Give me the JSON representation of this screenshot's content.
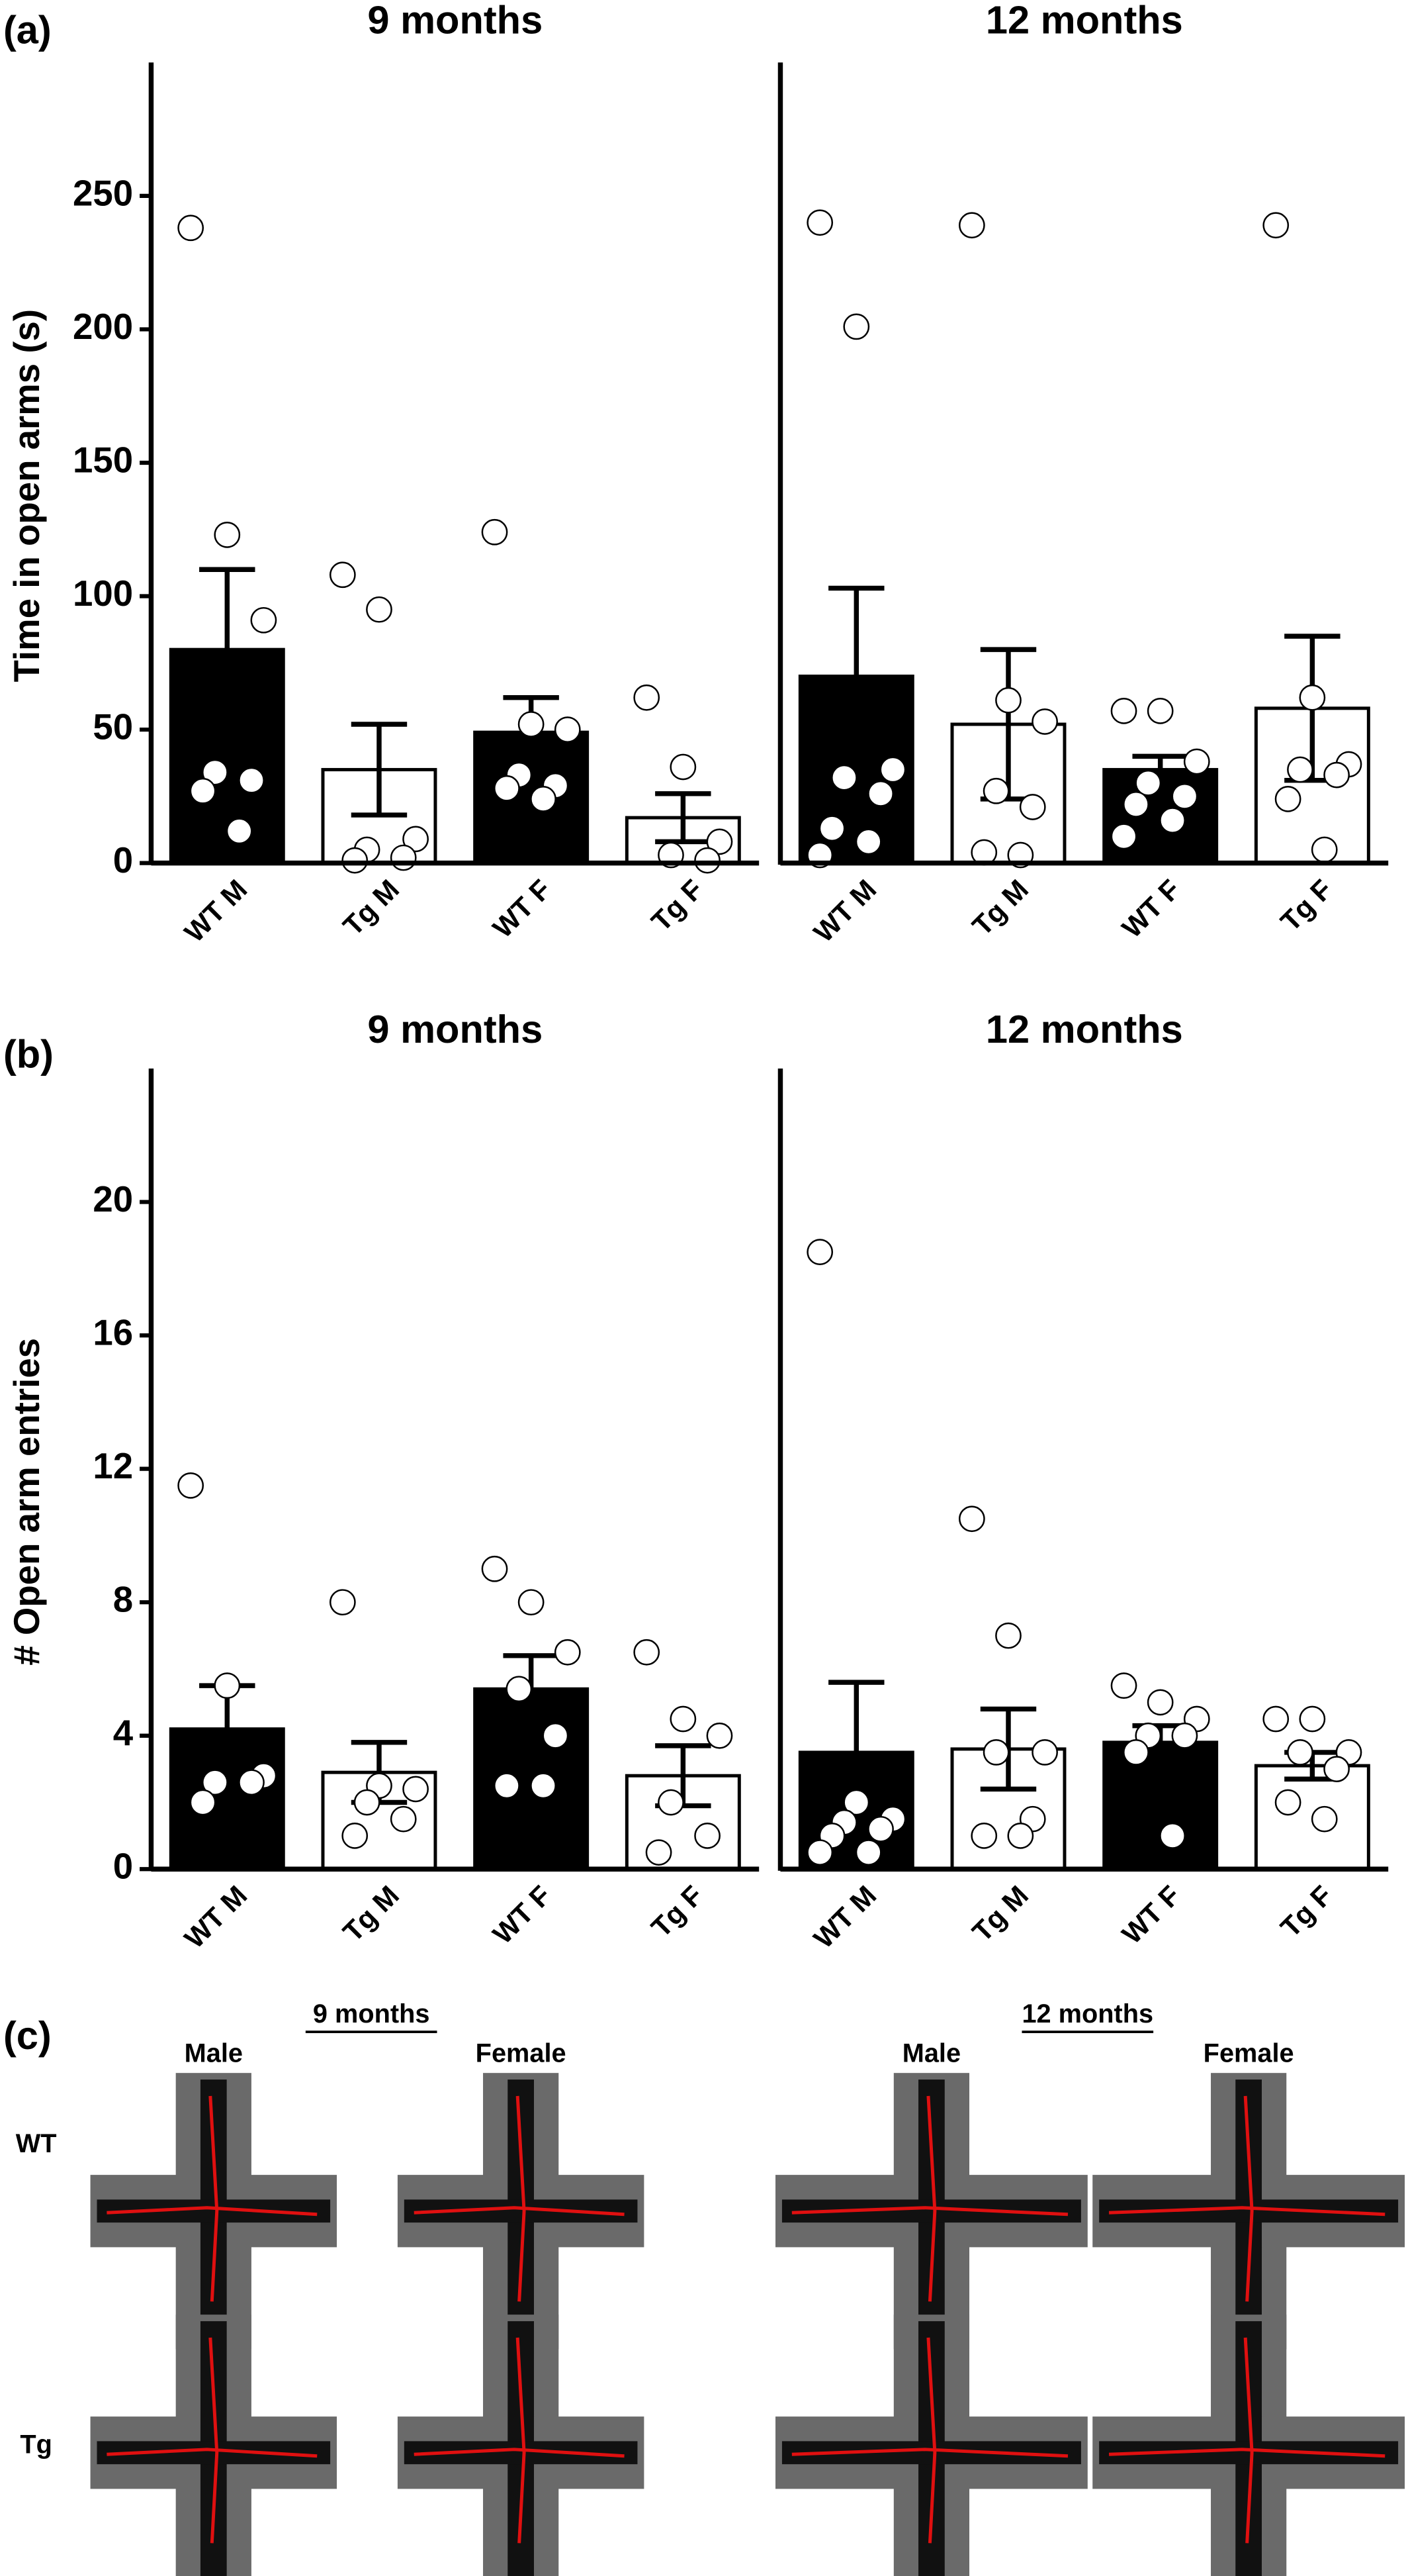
{
  "panel_labels": [
    "(a)",
    "(b)",
    "(c)"
  ],
  "chart_data": [
    {
      "type": "bar",
      "title": "9 months",
      "ylabel": "Time in  open  arms (s)",
      "categories": [
        "WT M",
        "Tg M",
        "WT F",
        "Tg F"
      ],
      "values": [
        80,
        35,
        49,
        17
      ],
      "errors": [
        30,
        17,
        13,
        9
      ],
      "colors": [
        "#000000",
        "#ffffff",
        "#000000",
        "#ffffff"
      ],
      "points": [
        [
          238,
          123,
          91,
          34,
          31,
          27,
          12
        ],
        [
          108,
          95,
          9,
          5,
          2,
          1
        ],
        [
          124,
          52,
          50,
          33,
          29,
          28,
          24
        ],
        [
          62,
          36,
          8,
          3,
          1
        ]
      ],
      "ylim": [
        0,
        300
      ],
      "yticks": [
        0,
        50,
        100,
        150,
        200,
        250
      ]
    },
    {
      "type": "bar",
      "title": "12 months",
      "categories": [
        "WT M",
        "Tg M",
        "WT F",
        "Tg F"
      ],
      "values": [
        70,
        52,
        35,
        58
      ],
      "errors": [
        33,
        28,
        5,
        27
      ],
      "colors": [
        "#000000",
        "#ffffff",
        "#000000",
        "#ffffff"
      ],
      "points": [
        [
          240,
          201,
          35,
          32,
          26,
          13,
          8,
          3
        ],
        [
          239,
          61,
          53,
          27,
          21,
          4,
          3
        ],
        [
          57,
          57,
          38,
          30,
          25,
          22,
          16,
          10
        ],
        [
          239,
          62,
          37,
          35,
          33,
          24,
          5
        ]
      ],
      "ylim": [
        0,
        300
      ]
    },
    {
      "type": "bar",
      "title": "9 months",
      "ylabel": "# Open  arm entries",
      "categories": [
        "WT M",
        "Tg M",
        "WT F",
        "Tg F"
      ],
      "values": [
        4.2,
        2.9,
        5.4,
        2.8
      ],
      "errors": [
        1.3,
        0.9,
        1.0,
        0.9
      ],
      "colors": [
        "#000000",
        "#ffffff",
        "#000000",
        "#ffffff"
      ],
      "points": [
        [
          11.5,
          5.5,
          2.8,
          2.6,
          2.6,
          2.0
        ],
        [
          8.0,
          2.5,
          2.4,
          2.0,
          1.5,
          1.0
        ],
        [
          9.0,
          8.0,
          6.5,
          5.4,
          4.0,
          2.5,
          2.5
        ],
        [
          6.5,
          4.5,
          4.0,
          2.0,
          1.0,
          0.5
        ]
      ],
      "ylim": [
        0,
        24
      ],
      "yticks": [
        0,
        4,
        8,
        12,
        16,
        20
      ]
    },
    {
      "type": "bar",
      "title": "12 months",
      "categories": [
        "WT M",
        "Tg M",
        "WT F",
        "Tg F"
      ],
      "values": [
        3.5,
        3.6,
        3.8,
        3.1
      ],
      "errors": [
        2.1,
        1.2,
        0.5,
        0.4
      ],
      "colors": [
        "#000000",
        "#ffffff",
        "#000000",
        "#ffffff"
      ],
      "points": [
        [
          18.5,
          2.0,
          1.5,
          1.4,
          1.2,
          1.0,
          0.5,
          0.5
        ],
        [
          10.5,
          7.0,
          3.5,
          3.5,
          1.5,
          1.0,
          1.0
        ],
        [
          5.5,
          5.0,
          4.5,
          4.0,
          4.0,
          3.5,
          1.0
        ],
        [
          4.5,
          4.5,
          3.5,
          3.5,
          3.0,
          2.0,
          1.5
        ]
      ],
      "ylim": [
        0,
        24
      ]
    }
  ],
  "panel_c": {
    "columns": [
      {
        "title": "9 months",
        "sexes": [
          "Male",
          "Female"
        ]
      },
      {
        "title": "12 months",
        "sexes": [
          "Male",
          "Female"
        ]
      }
    ],
    "rows": [
      "WT",
      "Tg"
    ]
  }
}
